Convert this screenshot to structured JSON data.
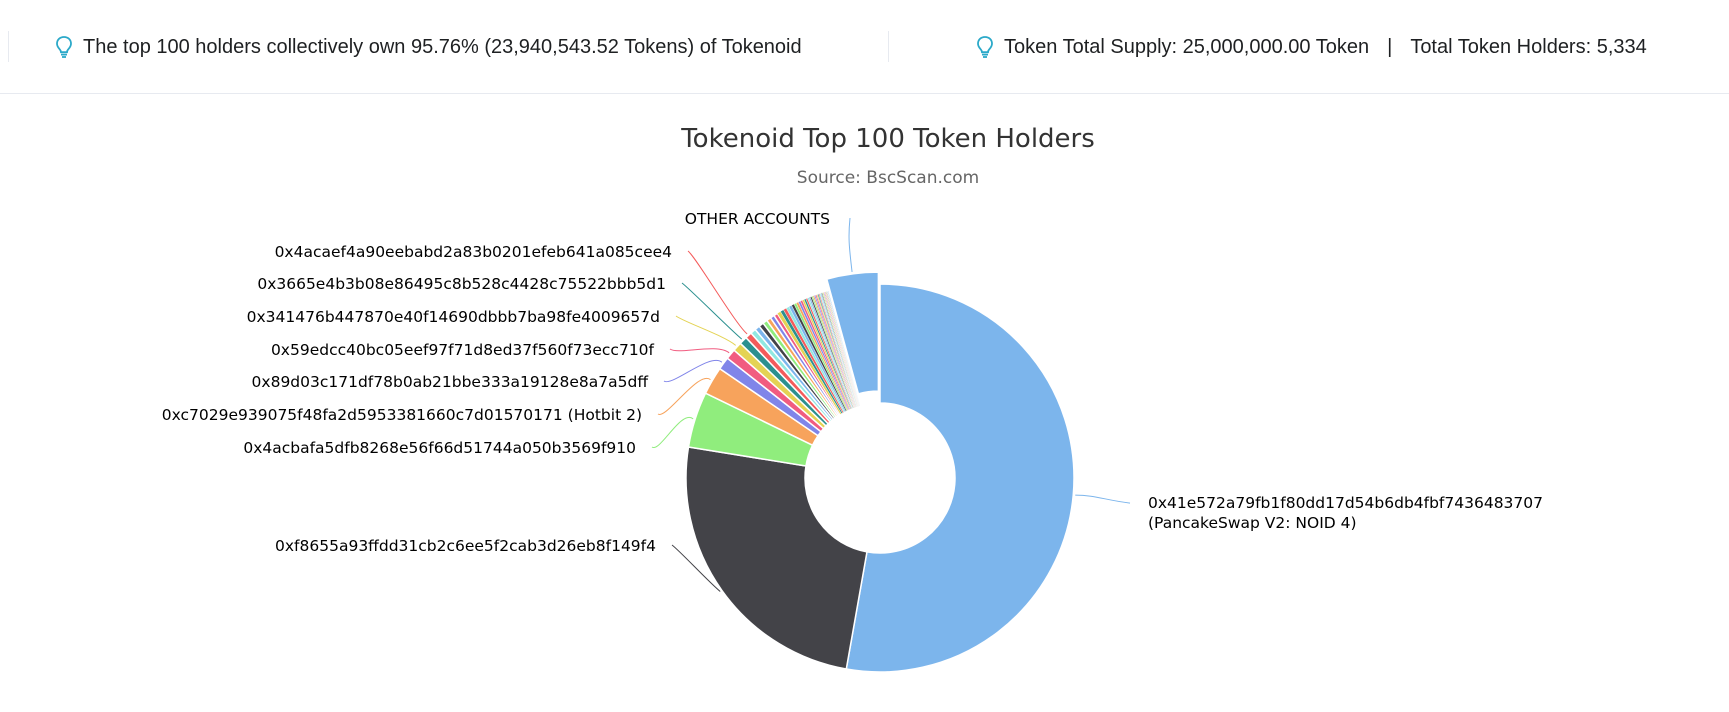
{
  "header": {
    "left_text": "The top 100 holders collectively own 95.76% (23,940,543.52 Tokens) of Tokenoid",
    "supply_text": "Token Total Supply: 25,000,000.00 Token",
    "separator": "|",
    "holders_text": "Total Token Holders: 5,334",
    "icon": "lightbulb-icon",
    "icon_color": "#2ba9c9"
  },
  "chart_data": {
    "type": "pie",
    "donut": true,
    "title": "Tokenoid Top 100 Token Holders",
    "subtitle": "Source: BscScan.com",
    "labeled_slices": [
      {
        "label": "0x41e572a79fb1f80dd17d54b6db4fbf7436483707",
        "label_line2": "(PancakeSwap V2: NOID 4)",
        "value": 52.2,
        "color": "#7cb5ec"
      },
      {
        "label": "0xf8655a93ffdd31cb2c6ee5f2cab3d26eb8f149f4",
        "value": 24.5,
        "color": "#434348"
      },
      {
        "label": "0x4acbafa5dfb8268e56f66d51744a050b3569f910",
        "value": 4.6,
        "color": "#90ed7d"
      },
      {
        "label": "0xc7029e939075f48fa2d5953381660c7d01570171 (Hotbit 2)",
        "value": 2.3,
        "color": "#f7a35c"
      },
      {
        "label": "0x89d03c171df78b0ab21bbe333a19128e8a7a5dff",
        "value": 1.05,
        "color": "#8085e9"
      },
      {
        "label": "0x59edcc40bc05eef97f71d8ed37f560f73ecc710f",
        "value": 0.85,
        "color": "#f15c80"
      },
      {
        "label": "0x341476b447870e40f14690dbbb7ba98fe4009657d",
        "value": 0.75,
        "color": "#e4d354"
      },
      {
        "label": "0x3665e4b3b08e86495c8b528c4428c75522bbb5d1",
        "value": 0.65,
        "color": "#2b908f"
      },
      {
        "label": "0x4acaef4a90eebabd2a83b0201efeb641a085cee4",
        "value": 0.55,
        "color": "#f45b5b"
      }
    ],
    "other_slice": {
      "label": "OTHER ACCOUNTS",
      "value": 4.24,
      "color": "#7cb5ec",
      "sliced": true
    },
    "unlabeled_slices": [
      0.45,
      0.42,
      0.4,
      0.38,
      0.36,
      0.34,
      0.32,
      0.3,
      0.28,
      0.26,
      0.25,
      0.24,
      0.22,
      0.2,
      0.19,
      0.18,
      0.17,
      0.16,
      0.15,
      0.14,
      0.13,
      0.12,
      0.12,
      0.11,
      0.11,
      0.1,
      0.1,
      0.09,
      0.09,
      0.08,
      0.08,
      0.08,
      0.07,
      0.07,
      0.07,
      0.06,
      0.06,
      0.06,
      0.05,
      0.05,
      0.05,
      0.05
    ],
    "palette": [
      "#91e8e1",
      "#7cb5ec",
      "#434348",
      "#90ed7d",
      "#f7a35c",
      "#8085e9",
      "#f15c80",
      "#e4d354",
      "#2b908f",
      "#f45b5b"
    ]
  }
}
